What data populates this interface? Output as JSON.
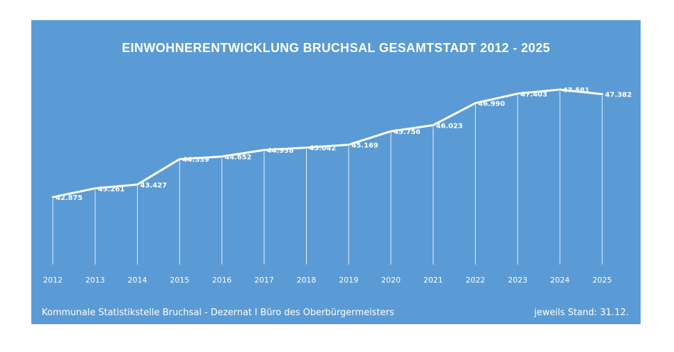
{
  "colors": {
    "background": "#5b9bd5",
    "line": "#ffffff",
    "text": "#ffffff"
  },
  "footer": {
    "source": "Kommunale Statistikstelle Bruchsal - Dezernat I Büro des Oberbürgermeisters",
    "note": "jeweils Stand: 31.12."
  },
  "chart_data": {
    "type": "line",
    "title": "EINWOHNERENTWICKLUNG BRUCHSAL GESAMTSTADT 2012 - 2025",
    "xlabel": "",
    "ylabel": "",
    "categories": [
      "2012",
      "2013",
      "2014",
      "2015",
      "2016",
      "2017",
      "2018",
      "2019",
      "2020",
      "2021",
      "2022",
      "2023",
      "2024",
      "2025"
    ],
    "values": [
      42875,
      43261,
      43427,
      44539,
      44652,
      44938,
      45042,
      45169,
      45756,
      46023,
      46990,
      47403,
      47581,
      47382
    ],
    "data_labels": [
      "42.875",
      "43.261",
      "43.427",
      "44.539",
      "44.652",
      "44.938",
      "45.042",
      "45.169",
      "45.756",
      "46.023",
      "46.990",
      "47.403",
      "47.581",
      "47.382"
    ],
    "grid": false,
    "legend": "none"
  }
}
